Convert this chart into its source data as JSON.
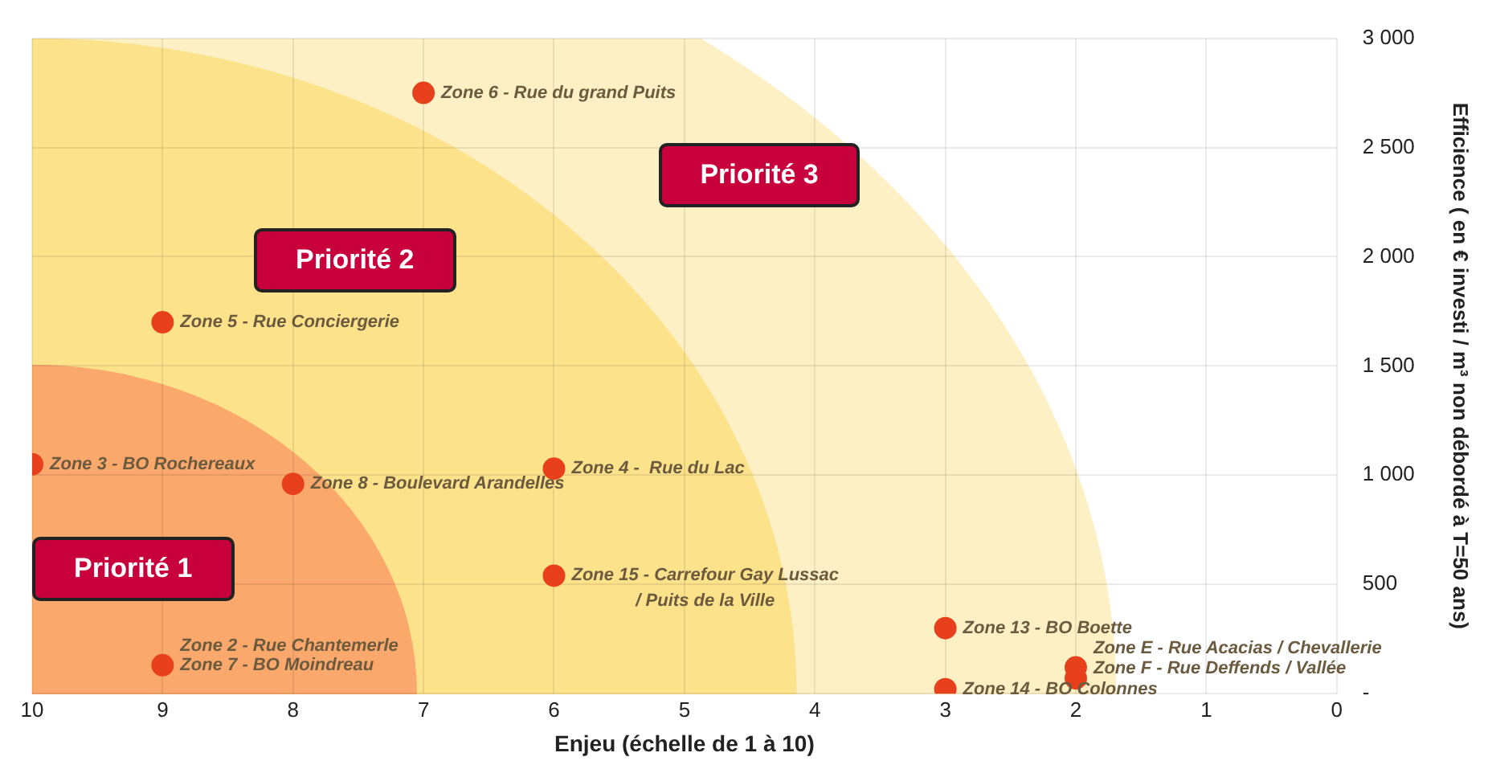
{
  "chart_data": {
    "type": "scatter",
    "xlabel": "Enjeu (échelle de 1 à 10)",
    "ylabel": "Efficience ( en € investi / m³ non débordé à T=50 ans)",
    "x": [
      7,
      9,
      10,
      8,
      6,
      6,
      9,
      3,
      3,
      2,
      2
    ],
    "series": [
      {
        "color": "#e8401c",
        "values": [
          2750,
          1700,
          1050,
          960,
          1030,
          540,
          130,
          300,
          20,
          120,
          70
        ]
      }
    ],
    "xlim": [
      10,
      0
    ],
    "xticks": [
      10,
      9,
      8,
      7,
      6,
      5,
      4,
      3,
      2,
      1,
      0
    ],
    "ylim": [
      0,
      3000
    ],
    "yticks": [
      {
        "value": 0,
        "label": "-"
      },
      500,
      {
        "value": 1000,
        "label": "1 000"
      },
      {
        "value": 1500,
        "label": "1 500"
      },
      {
        "value": 2000,
        "label": "2 000"
      },
      {
        "value": 2500,
        "label": "2 500"
      },
      {
        "value": 3000,
        "label": "3 000"
      }
    ],
    "grid": true,
    "legend": false,
    "marker": "circle",
    "annotations": [
      "Priorité 1",
      "Priorité 2",
      "Priorité 3",
      {
        "text": "Zone 6 - Rue du grand Puits",
        "x": 7,
        "y": 2750
      },
      {
        "text": "Zone 5 - Rue Conciergerie",
        "x": 9,
        "y": 1700
      },
      {
        "text": "Zone 3 - BO Rochereaux",
        "x": 10,
        "y": 1050
      },
      {
        "text": "Zone 8 - Boulevard Arandelles",
        "x": 8,
        "y": 960
      },
      {
        "text": "Zone 4 -  Rue du Lac",
        "x": 6,
        "y": 1030
      },
      {
        "text": "Zone 15 - Carrefour Gay Lussac\n/ Puits de la Ville",
        "x": 6,
        "y": 540
      },
      {
        "text": "Zone 7 - BO Moindreau",
        "x": 9,
        "y": 130
      },
      {
        "text": "Zone 2 - Rue Chantemerle",
        "x": 9,
        "y": 130
      },
      {
        "text": "Zone 13 - BO Boette",
        "x": 3,
        "y": 300
      },
      {
        "text": "Zone 14 - BO Colonnes",
        "x": 3,
        "y": 20
      },
      {
        "text": "Zone F - Rue Deffends / Vallée",
        "x": 2,
        "y": 70
      },
      {
        "text": "Zone E - Rue Acacias / Chevallerie",
        "x": 2,
        "y": 120
      }
    ]
  }
}
